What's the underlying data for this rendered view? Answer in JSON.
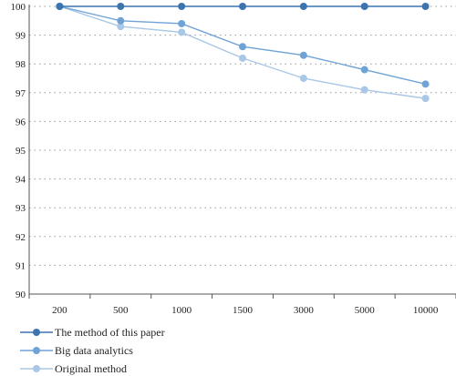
{
  "chart_data": {
    "type": "line",
    "categories": [
      "200",
      "500",
      "1000",
      "1500",
      "3000",
      "5000",
      "10000"
    ],
    "ylim": [
      90,
      100
    ],
    "yticks": [
      90,
      91,
      92,
      93,
      94,
      95,
      96,
      97,
      98,
      99,
      100
    ],
    "grid": "horizontal dotted",
    "legend_position": "bottom-left",
    "series": [
      {
        "name": "The method of this paper",
        "color": "#3c74b0",
        "values": [
          100,
          100,
          100,
          100,
          100,
          100,
          100
        ]
      },
      {
        "name": "Big data analytics",
        "color": "#6fa3d6",
        "values": [
          100,
          99.5,
          99.4,
          98.6,
          98.3,
          97.8,
          97.3
        ]
      },
      {
        "name": "Original method",
        "color": "#a9c7e6",
        "values": [
          100,
          99.3,
          99.1,
          98.2,
          97.5,
          97.1,
          96.8
        ]
      }
    ]
  }
}
